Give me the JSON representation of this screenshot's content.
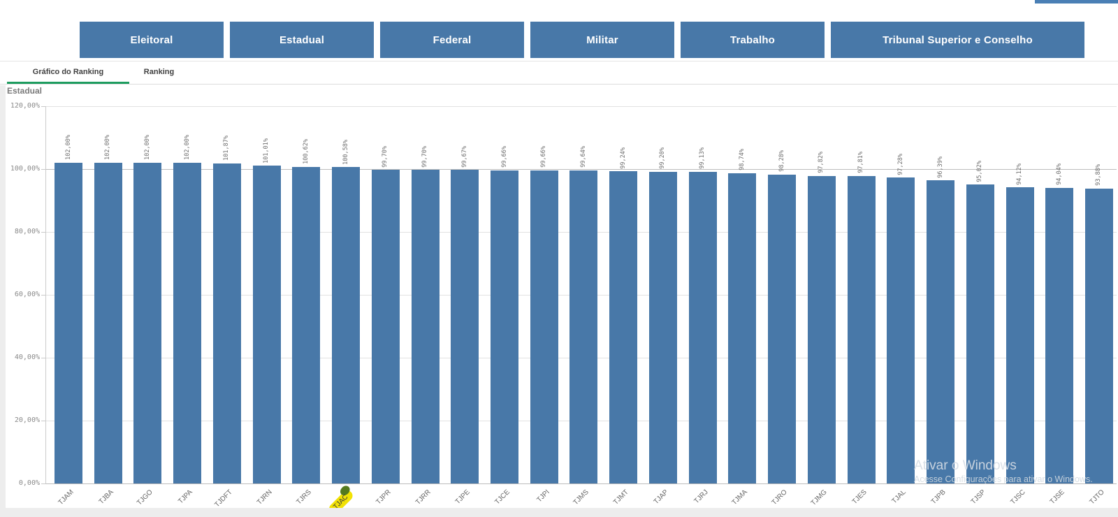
{
  "accent": {
    "top_right_color": "#4a7fb5"
  },
  "nav_buttons": [
    {
      "label": "Eleitoral"
    },
    {
      "label": "Estadual"
    },
    {
      "label": "Federal"
    },
    {
      "label": "Militar"
    },
    {
      "label": "Trabalho"
    },
    {
      "label": "Tribunal Superior e Conselho"
    }
  ],
  "nav_button_color": "#4878a8",
  "tabs": {
    "items": [
      {
        "label": "Gráfico do Ranking",
        "active": true
      },
      {
        "label": "Ranking",
        "active": false
      }
    ],
    "active_underline_color": "#1e9c5f"
  },
  "chart_title": "Estadual",
  "chart_data": {
    "type": "bar",
    "title": "Estadual",
    "categories": [
      "TJAM",
      "TJBA",
      "TJGO",
      "TJPA",
      "TJDFT",
      "TJRN",
      "TJRS",
      "TJAC",
      "TJPR",
      "TJRR",
      "TJPE",
      "TJCE",
      "TJPI",
      "TJMS",
      "TJMT",
      "TJAP",
      "TJRJ",
      "TJMA",
      "TJRO",
      "TJMG",
      "TJES",
      "TJAL",
      "TJPB",
      "TJSP",
      "TJSC",
      "TJSE",
      "TJTO"
    ],
    "values": [
      102.0,
      102.0,
      102.0,
      102.0,
      101.87,
      101.01,
      100.62,
      100.58,
      99.7,
      99.7,
      99.67,
      99.66,
      99.66,
      99.64,
      99.24,
      99.2,
      99.13,
      98.74,
      98.28,
      97.82,
      97.81,
      97.28,
      96.39,
      95.02,
      94.12,
      94.04,
      93.88
    ],
    "value_labels": [
      "102,00%",
      "102,00%",
      "102,00%",
      "102,00%",
      "101,87%",
      "101,01%",
      "100,62%",
      "100,58%",
      "99,70%",
      "99,70%",
      "99,67%",
      "99,66%",
      "99,66%",
      "99,64%",
      "99,24%",
      "99,20%",
      "99,13%",
      "98,74%",
      "98,28%",
      "97,82%",
      "97,81%",
      "97,28%",
      "96,39%",
      "95,02%",
      "94,12%",
      "94,04%",
      "93,88%"
    ],
    "y_tick_labels": [
      "0,00%",
      "20,00%",
      "40,00%",
      "60,00%",
      "80,00%",
      "100,00%",
      "120,00%"
    ],
    "y_tick_values": [
      0,
      20,
      40,
      60,
      80,
      100,
      120
    ],
    "ylim": [
      0,
      120
    ],
    "grid": true,
    "bar_color": "#4878a8",
    "highlighted_category": "TJAC",
    "highlight_color": "#f2e205"
  },
  "watermark": {
    "line1": "Ativar o Windows",
    "line2": "Acesse Configurações para ativar o Windows."
  }
}
